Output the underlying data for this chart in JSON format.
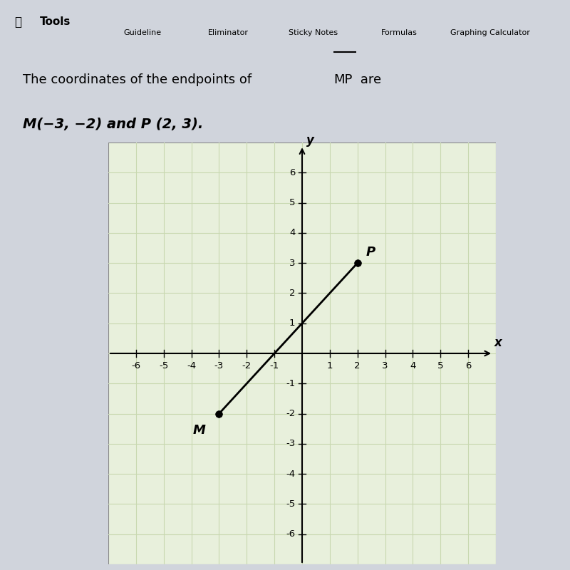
{
  "title_line1": "The coordinates of the endpoints of ",
  "title_mp": "MP",
  "title_line2": " are",
  "title_line3_part1": "M(−3, −2) and P (2, 3).",
  "M": [
    -3,
    -2
  ],
  "P": [
    2,
    3
  ],
  "xlim": [
    -7,
    7
  ],
  "ylim": [
    -7,
    7
  ],
  "xticks": [
    -6,
    -5,
    -4,
    -3,
    -2,
    -1,
    1,
    2,
    3,
    4,
    5,
    6
  ],
  "yticks": [
    -6,
    -5,
    -4,
    -3,
    -2,
    -1,
    1,
    2,
    3,
    4,
    5,
    6
  ],
  "grid_color": "#c8d8b0",
  "background_color": "#e8f0dc",
  "point_color": "#000000",
  "line_color": "#000000",
  "axis_color": "#000000",
  "label_M": "M",
  "label_P": "P",
  "xlabel": "x",
  "ylabel": "y",
  "point_size": 7,
  "line_width": 2.0,
  "header_bg": "#d8dde8",
  "page_bg": "#d0d4dc",
  "text_bg": "#c8ccd6"
}
